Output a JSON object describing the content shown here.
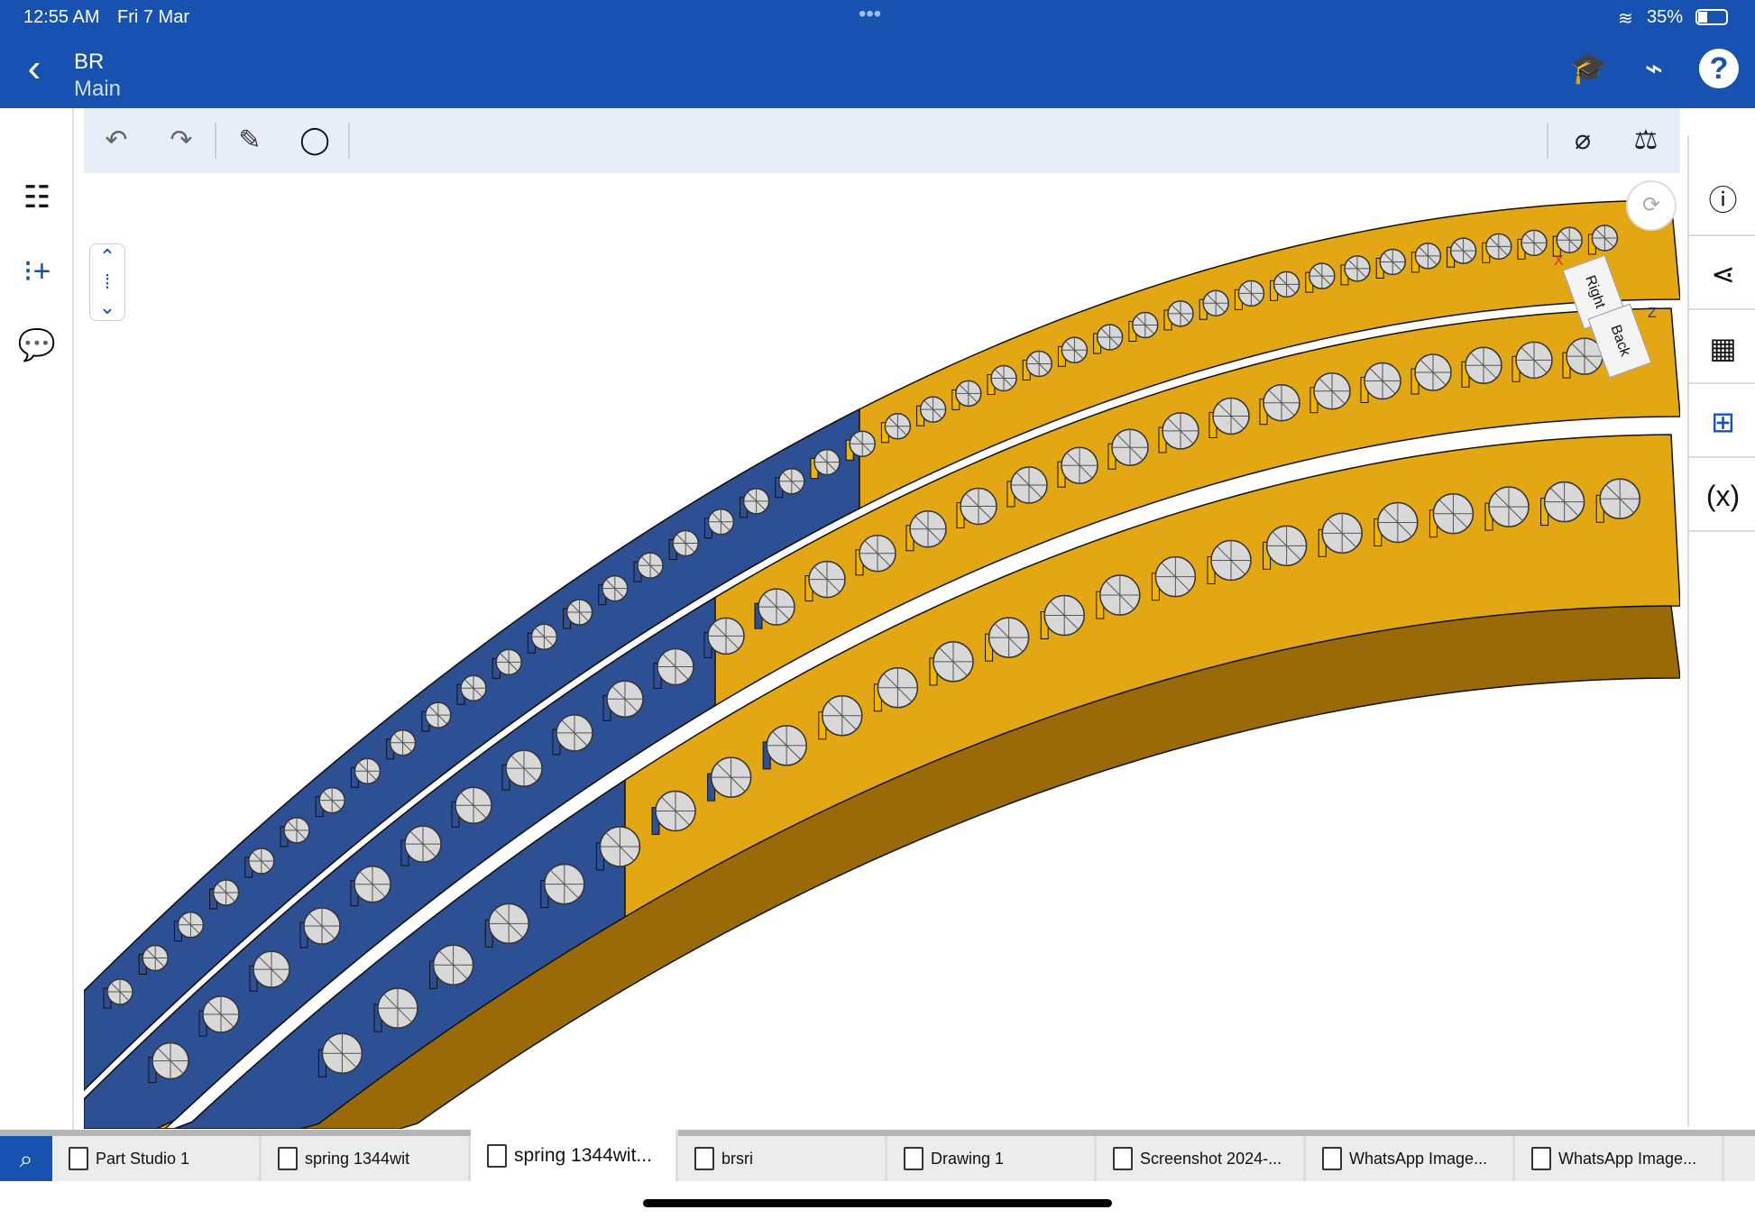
{
  "status_bar": {
    "time": "12:55 AM",
    "date": "Fri 7 Mar",
    "battery": "35%",
    "multitask": "•••"
  },
  "header": {
    "title": "BR",
    "subtitle": "Main",
    "icons": [
      "back-chevron-icon",
      "learning-center-icon",
      "connection-icon",
      "help-icon"
    ]
  },
  "toolbar": {
    "icons": [
      "undo-icon",
      "redo-icon",
      "sketch-pencil-icon",
      "view-sphere-icon",
      "measure-icon",
      "mass-properties-icon"
    ]
  },
  "left_sidebar": {
    "icons": [
      "feature-list-icon",
      "add-feature-icon",
      "comments-icon"
    ]
  },
  "right_sidebar": {
    "icons": [
      "info-icon",
      "share-icon",
      "appearance-icon",
      "configurations-icon",
      "variables-icon"
    ]
  },
  "view_cube": {
    "faces": [
      "Right",
      "Back"
    ],
    "axes": [
      "X",
      "Z"
    ]
  },
  "colors": {
    "brand": "#1752b0",
    "part_blue": "#2d4f93",
    "part_gold": "#e3a714",
    "gem": "#d8d8d8"
  },
  "tabs": [
    {
      "label": "Part Studio 1",
      "icon": "part-studio-icon"
    },
    {
      "label": "spring 1344wit",
      "icon": "assembly-icon"
    },
    {
      "label": "spring 1344wit...",
      "icon": "part-studio-icon",
      "active": true
    },
    {
      "label": "brsri",
      "icon": "part-studio-icon"
    },
    {
      "label": "Drawing 1",
      "icon": "drawing-icon"
    },
    {
      "label": "Screenshot 2024-...",
      "icon": "image-icon"
    },
    {
      "label": "WhatsApp Image...",
      "icon": "image-icon"
    },
    {
      "label": "WhatsApp Image...",
      "icon": "image-icon"
    }
  ]
}
